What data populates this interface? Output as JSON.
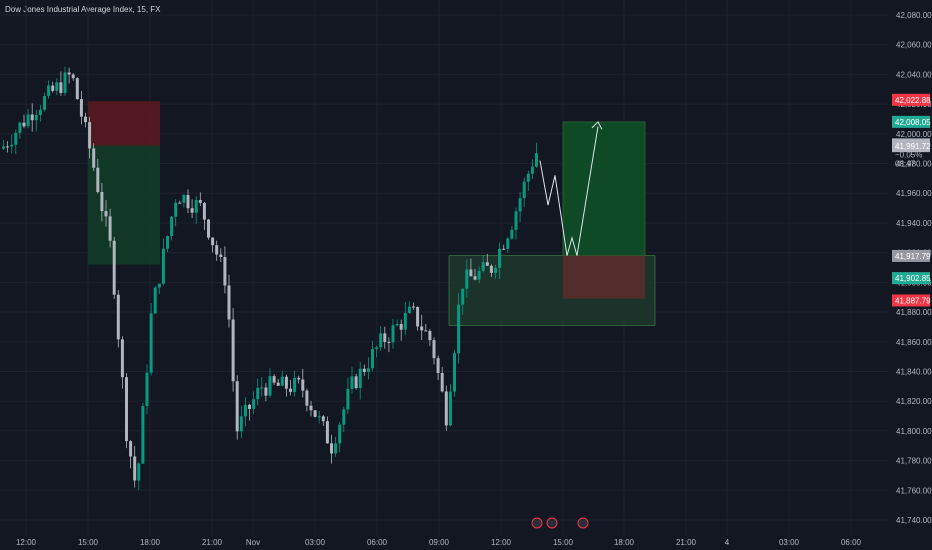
{
  "header": {
    "title": "Dow Jones Industrial Average Index, 15, FX"
  },
  "chart_data": {
    "type": "candlestick",
    "ylim": [
      41730,
      42090
    ],
    "y_ticks": [
      "42,080.00",
      "42,060.00",
      "42,040.00",
      "42,020.00",
      "42,000.00",
      "41,980.00",
      "41,960.00",
      "41,940.00",
      "41,920.00",
      "41,900.00",
      "41,880.00",
      "41,860.00",
      "41,840.00",
      "41,820.00",
      "41,800.00",
      "41,780.00",
      "41,760.00",
      "41,740.00"
    ],
    "x_ticks": [
      "12:00",
      "15:00",
      "18:00",
      "21:00",
      "Nov",
      "03:00",
      "06:00",
      "09:00",
      "12:00",
      "15:00",
      "18:00",
      "21:00",
      "4",
      "03:00",
      "06:00"
    ],
    "price_tags": [
      {
        "label": "42,022.88",
        "value": 42022.88,
        "color": "#f23645"
      },
      {
        "label": "42,008.05",
        "value": 42008.05,
        "color": "#22ab94"
      },
      {
        "label": "41,992.88",
        "value": 41992.88,
        "color": "#b2b5be"
      },
      {
        "label": "41,991.72",
        "value": 41991.72,
        "color": "#b2b5be"
      },
      {
        "label": "−0.05%",
        "value": 41986,
        "color": "#b2b5be"
      },
      {
        "label": "08:47",
        "value": 41980,
        "color": "#b2b5be"
      },
      {
        "label": "41,917.79",
        "value": 41917.79,
        "color": "#9598a1"
      },
      {
        "label": "41,902.85",
        "value": 41902.85,
        "color": "#22ab94"
      },
      {
        "label": "41,887.79",
        "value": 41887.79,
        "color": "#f23645"
      }
    ],
    "colors": {
      "up": "#089981",
      "down": "#b2b5be",
      "bg": "#131722",
      "grid": "#1e222d"
    }
  }
}
